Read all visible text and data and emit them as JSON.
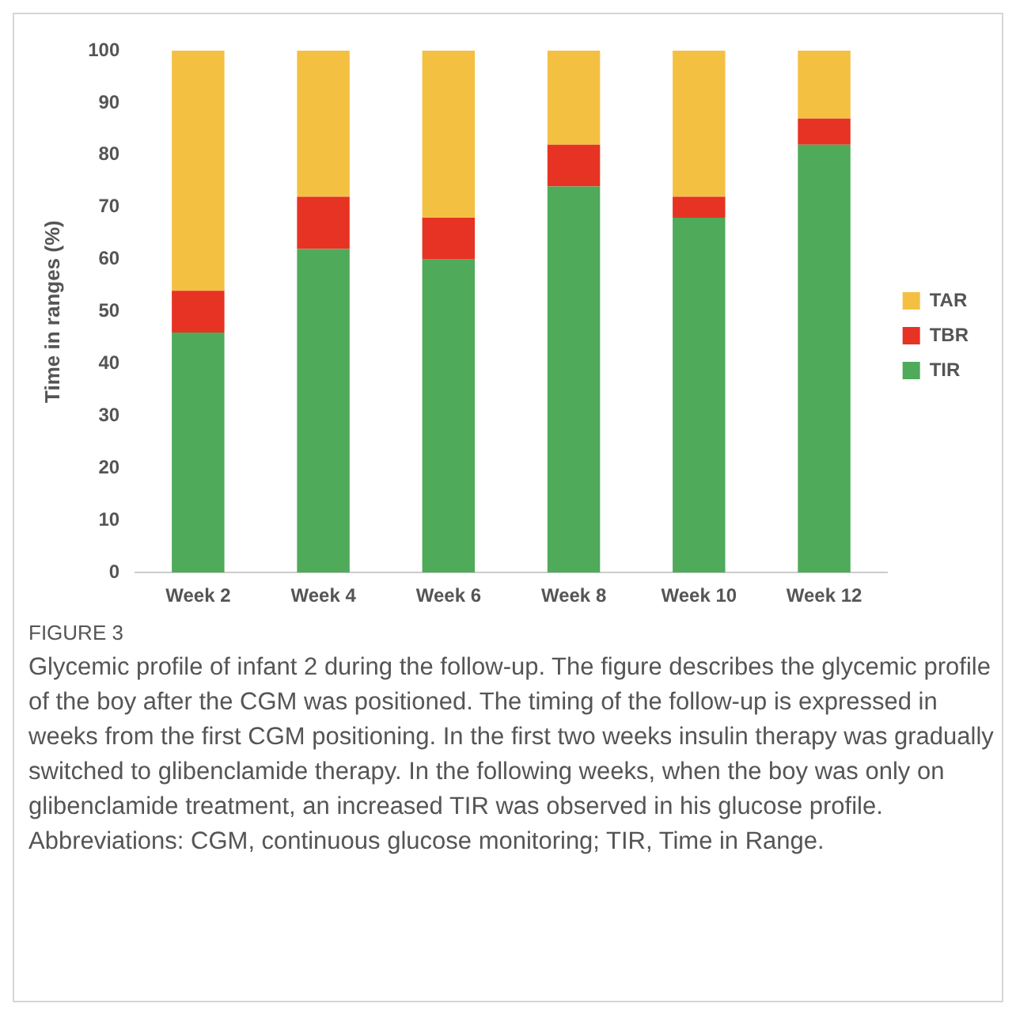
{
  "chart_data": {
    "type": "bar",
    "stacked": true,
    "ylabel": "Time in ranges (%)",
    "categories": [
      "Week 2",
      "Week 4",
      "Week 6",
      "Week 8",
      "Week 10",
      "Week 12"
    ],
    "series": [
      {
        "name": "TIR",
        "color": "#4faa5a",
        "values": [
          46,
          62,
          60,
          74,
          68,
          82
        ]
      },
      {
        "name": "TBR",
        "color": "#e63323",
        "values": [
          8,
          10,
          8,
          8,
          4,
          5
        ]
      },
      {
        "name": "TAR",
        "color": "#f4c042",
        "values": [
          46,
          28,
          32,
          18,
          28,
          13
        ]
      }
    ],
    "ylim": [
      0,
      100
    ],
    "yticks": [
      0,
      10,
      20,
      30,
      40,
      50,
      60,
      70,
      80,
      90,
      100
    ],
    "grid": false,
    "legend": "right",
    "annotations": [
      "FIGURE 3",
      "Glycemic profile of infant 2 during the follow-up. The figure describes the glycemic profile of the boy after the CGM was positioned. The timing of the follow-up is expressed in weeks from the first CGM positioning. In the first two weeks insulin therapy was gradually switched to glibenclamide therapy. In the following weeks, when the boy was only on glibenclamide treatment, an increased TIR was observed in his glucose profile. Abbreviations: CGM, continuous glucose monitoring; TIR, Time in Range."
    ]
  }
}
